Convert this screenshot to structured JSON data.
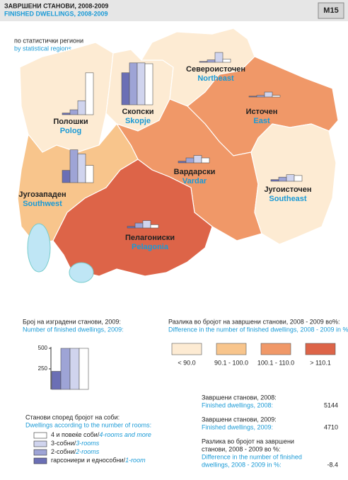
{
  "header": {
    "title_mk": "ЗАВРШЕНИ СТАНОВИ, 2008-2009",
    "title_en": "FINISHED DWELLINGS, 2008-2009",
    "code": "M15"
  },
  "subtitle_mk": "по статистички региони",
  "subtitle_en": "by statistical regions",
  "regions": [
    {
      "name_mk": "Полошки",
      "name_en": "Polog",
      "color": "#fdebd3",
      "values": [
        20,
        60,
        170,
        510
      ]
    },
    {
      "name_mk": "Скопски",
      "name_en": "Skopje",
      "color": "#fdebd3",
      "values": [
        390,
        510,
        510,
        500
      ]
    },
    {
      "name_mk": "Североисточен",
      "name_en": "Northeast",
      "color": "#fdebd3",
      "values": [
        10,
        30,
        120,
        40
      ]
    },
    {
      "name_mk": "Источен",
      "name_en": "East",
      "color": "#f09868",
      "values": [
        10,
        20,
        60,
        20
      ]
    },
    {
      "name_mk": "Вардарски",
      "name_en": "Vardar",
      "color": "#f09868",
      "values": [
        20,
        60,
        90,
        60
      ]
    },
    {
      "name_mk": "Југоисточен",
      "name_en": "Southeast",
      "color": "#fdebd3",
      "values": [
        20,
        50,
        80,
        70
      ]
    },
    {
      "name_mk": "Југозападен",
      "name_en": "Southwest",
      "color": "#f8c58c",
      "values": [
        150,
        400,
        350,
        210
      ]
    },
    {
      "name_mk": "Пелагониски",
      "name_en": "Pelagonia",
      "color": "#dd6448",
      "values": [
        20,
        60,
        90,
        40
      ]
    }
  ],
  "count_chart": {
    "title_mk": "Број на изградени станови, 2009:",
    "title_en": "Number of finished dwellings, 2009:",
    "ylim": [
      0,
      500
    ],
    "yticks": [
      250,
      500
    ],
    "values": [
      220,
      500,
      500,
      500
    ]
  },
  "rooms": {
    "title_mk": "Станови според бројот на соби:",
    "title_en": "Dwellings according to the number of rooms:",
    "items": [
      {
        "label_mk": "гарсониери и еднособни/",
        "label_en": "1-room",
        "color": "#6b6fb5"
      },
      {
        "label_mk": "2-собни/",
        "label_en": "2-rooms",
        "color": "#9ea4d6"
      },
      {
        "label_mk": "3-собни/",
        "label_en": "3-rooms",
        "color": "#d0d4ee"
      },
      {
        "label_mk": "4 и повеќе соби/",
        "label_en": "4-rooms and more",
        "color": "#ffffff"
      }
    ]
  },
  "difference": {
    "title_mk": "Разлика во бројот на завршени станови, 2008 - 2009 во%:",
    "title_en": "Difference in the number of finished dwellings, 2008 - 2009 in %:",
    "classes": [
      {
        "label": "< 90.0",
        "color": "#fdebd3"
      },
      {
        "label": "90.1 - 100.0",
        "color": "#f8c58c"
      },
      {
        "label": "100.1 - 110.0",
        "color": "#f09868"
      },
      {
        "label": "> 110.1",
        "color": "#dd6448"
      }
    ]
  },
  "stats": [
    {
      "label_mk": [
        "Завршени станови, 2008:"
      ],
      "label_en": [
        "Finished dwellings, 2008:"
      ],
      "value": 5144
    },
    {
      "label_mk": [
        "Завршени станови, 2009:"
      ],
      "label_en": [
        "Finished dwellings, 2009:"
      ],
      "value": 4710
    },
    {
      "label_mk": [
        "Разлика во бројот на завршени",
        "станови, 2008 - 2009 во %:"
      ],
      "label_en": [
        "Difference in the number of finished",
        "dwellings, 2008 - 2009 in %:"
      ],
      "value": -8.4
    }
  ]
}
